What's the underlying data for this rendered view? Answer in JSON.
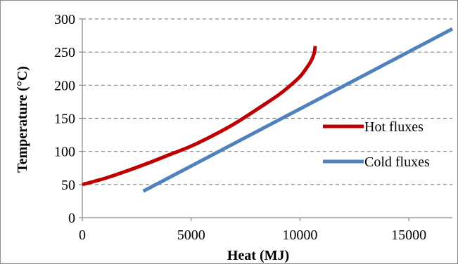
{
  "chart_data": {
    "type": "line",
    "title": "",
    "xlabel": "Heat (MJ)",
    "ylabel": "Temperature (°C)",
    "xlim": [
      0,
      17000
    ],
    "ylim": [
      0,
      300
    ],
    "x_ticks": [
      0,
      5000,
      10000,
      15000
    ],
    "y_ticks": [
      0,
      50,
      100,
      150,
      200,
      250,
      300
    ],
    "x_tick_labels": [
      "0",
      "5000",
      "10000",
      "15000"
    ],
    "y_tick_labels": [
      "0",
      "50",
      "100",
      "150",
      "200",
      "250",
      "300"
    ],
    "grid": "horizontal dashed",
    "legend": "right",
    "series": [
      {
        "name": "Hot fluxes",
        "color": "#c00000",
        "points": [
          [
            0,
            50
          ],
          [
            1000,
            59
          ],
          [
            2000,
            70
          ],
          [
            3000,
            82
          ],
          [
            4000,
            95
          ],
          [
            5000,
            108
          ],
          [
            6000,
            124
          ],
          [
            7000,
            142
          ],
          [
            8000,
            163
          ],
          [
            9000,
            185
          ],
          [
            9500,
            198
          ],
          [
            10000,
            213
          ],
          [
            10300,
            226
          ],
          [
            10500,
            236
          ],
          [
            10650,
            248
          ],
          [
            10700,
            259
          ]
        ]
      },
      {
        "name": "Cold fluxes",
        "color": "#4f81bd",
        "points": [
          [
            2800,
            40
          ],
          [
            17000,
            285
          ]
        ]
      }
    ]
  }
}
